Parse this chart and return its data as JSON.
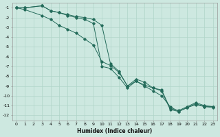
{
  "xlabel": "Humidex (Indice chaleur)",
  "bg_color": "#cde8e0",
  "grid_color": "#b0d4c8",
  "line_color": "#236b5a",
  "xlim": [
    -0.5,
    23.5
  ],
  "ylim": [
    -12.5,
    -0.5
  ],
  "yticks": [
    -1,
    -2,
    -3,
    -4,
    -5,
    -6,
    -7,
    -8,
    -9,
    -10,
    -11,
    -12
  ],
  "xticks": [
    0,
    1,
    2,
    3,
    4,
    5,
    6,
    7,
    8,
    9,
    10,
    11,
    12,
    13,
    14,
    15,
    16,
    17,
    18,
    19,
    20,
    21,
    22,
    23
  ],
  "serA_x": [
    0,
    1,
    3,
    4,
    5,
    6,
    7,
    8,
    9,
    10,
    11,
    12,
    13,
    14,
    15,
    16,
    17,
    18,
    19,
    20,
    21,
    22,
    23
  ],
  "serA_y": [
    -1.0,
    -1.0,
    -0.8,
    -1.3,
    -1.5,
    -1.7,
    -1.9,
    -2.0,
    -2.2,
    -2.8,
    -6.7,
    -7.5,
    -9.0,
    -8.3,
    -8.6,
    -9.2,
    -9.4,
    -11.3,
    -11.5,
    -11.1,
    -10.7,
    -11.0,
    -11.1
  ],
  "serB_x": [
    0,
    1,
    3,
    4,
    5,
    6,
    7,
    8,
    9,
    10,
    11,
    12,
    13,
    14,
    15,
    16,
    17,
    18,
    19,
    20,
    21,
    22,
    23
  ],
  "serB_y": [
    -1.0,
    -1.0,
    -0.8,
    -1.3,
    -1.5,
    -1.8,
    -2.0,
    -2.2,
    -2.6,
    -7.0,
    -7.2,
    -8.1,
    -9.2,
    -8.5,
    -8.9,
    -9.2,
    -9.5,
    -11.4,
    -11.6,
    -11.2,
    -10.8,
    -11.1,
    -11.1
  ],
  "serC_x": [
    0,
    1,
    3,
    4,
    5,
    6,
    7,
    8,
    9,
    10,
    11,
    12,
    13,
    14,
    15,
    16,
    17,
    18,
    19,
    20,
    21,
    22,
    23
  ],
  "serC_y": [
    -1.0,
    -1.2,
    -1.8,
    -2.2,
    -2.8,
    -3.2,
    -3.6,
    -4.2,
    -4.8,
    -6.5,
    -6.9,
    -7.6,
    -9.0,
    -8.5,
    -9.0,
    -9.5,
    -10.0,
    -11.1,
    -11.6,
    -11.2,
    -10.9,
    -11.1,
    -11.2
  ]
}
